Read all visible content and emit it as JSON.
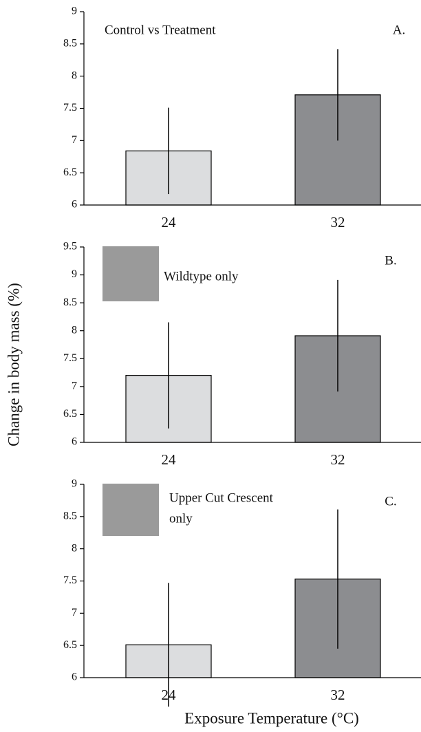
{
  "y_label": "Change in body mass (%)",
  "x_label": "Exposure Temperature (°C)",
  "chart_data": [
    {
      "type": "bar",
      "annotation": [
        "Control vs Treatment"
      ],
      "panel_label": "A.",
      "categories": [
        "24",
        "32"
      ],
      "values": [
        6.84,
        7.71
      ],
      "errors": [
        0.67,
        0.71
      ],
      "colors": [
        "#dcdddf",
        "#8c8d90"
      ],
      "ylim": [
        6,
        9
      ],
      "yticks": [
        6,
        6.5,
        7,
        7.5,
        8,
        8.5,
        9
      ]
    },
    {
      "type": "bar",
      "annotation": [
        "Wildtype only"
      ],
      "panel_label": "B.",
      "categories": [
        "24",
        "32"
      ],
      "values": [
        7.2,
        7.91
      ],
      "errors": [
        0.95,
        1.0
      ],
      "colors": [
        "#dcdddf",
        "#8c8d90"
      ],
      "ylim": [
        6,
        9.5
      ],
      "yticks": [
        6,
        6.5,
        7,
        7.5,
        8,
        8.5,
        9,
        9.5
      ]
    },
    {
      "type": "bar",
      "annotation": [
        "Upper Cut Crescent",
        "only"
      ],
      "panel_label": "C.",
      "categories": [
        "24",
        "32"
      ],
      "values": [
        6.51,
        7.53
      ],
      "errors": [
        0.96,
        1.08
      ],
      "colors": [
        "#dcdddf",
        "#8c8d90"
      ],
      "ylim": [
        6,
        9
      ],
      "yticks": [
        6,
        6.5,
        7,
        7.5,
        8,
        8.5,
        9
      ]
    }
  ]
}
